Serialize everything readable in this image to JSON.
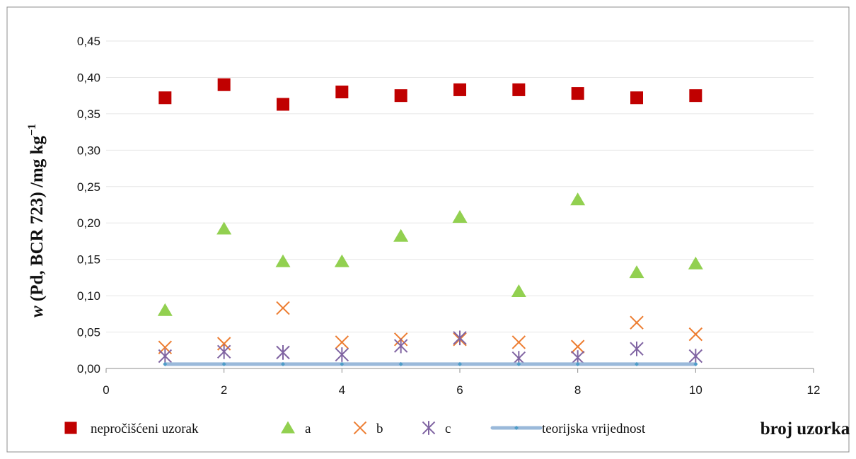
{
  "chart_data": {
    "type": "scatter",
    "title": "",
    "xlabel": "broj uzorka",
    "ylabel_main": "w",
    "ylabel_rest": " (Pd, BCR 723) /mg kg",
    "ylabel_sup": "−1",
    "xlim": [
      0,
      12
    ],
    "ylim": [
      0,
      0.45
    ],
    "x_ticks": [
      0,
      2,
      4,
      6,
      8,
      10,
      12
    ],
    "x_tick_labels": [
      "0",
      "2",
      "4",
      "6",
      "8",
      "10",
      "12"
    ],
    "y_ticks": [
      0,
      0.05,
      0.1,
      0.15,
      0.2,
      0.25,
      0.3,
      0.35,
      0.4,
      0.45
    ],
    "y_tick_labels": [
      "0,00",
      "0,05",
      "0,10",
      "0,15",
      "0,20",
      "0,25",
      "0,30",
      "0,35",
      "0,40",
      "0,45"
    ],
    "grid": true,
    "legend_position": "bottom",
    "series": [
      {
        "name": "nepročišćeni uzorak",
        "marker": "square",
        "color": "#c00000",
        "x": [
          1,
          2,
          3,
          4,
          5,
          6,
          7,
          8,
          9,
          10
        ],
        "y": [
          0.372,
          0.39,
          0.363,
          0.38,
          0.375,
          0.383,
          0.383,
          0.378,
          0.372,
          0.375
        ]
      },
      {
        "name": "a",
        "marker": "triangle",
        "color": "#92d050",
        "x": [
          1,
          2,
          3,
          4,
          5,
          6,
          7,
          8,
          9,
          10
        ],
        "y": [
          0.08,
          0.192,
          0.147,
          0.147,
          0.182,
          0.208,
          0.106,
          0.232,
          0.132,
          0.144
        ]
      },
      {
        "name": "b",
        "marker": "x",
        "color": "#ed7d31",
        "x": [
          1,
          2,
          3,
          4,
          5,
          6,
          7,
          8,
          9,
          10
        ],
        "y": [
          0.029,
          0.034,
          0.083,
          0.036,
          0.04,
          0.04,
          0.036,
          0.03,
          0.063,
          0.047
        ]
      },
      {
        "name": "c",
        "marker": "asterisk",
        "color": "#8064a2",
        "x": [
          1,
          2,
          3,
          4,
          5,
          6,
          7,
          8,
          9,
          10
        ],
        "y": [
          0.017,
          0.023,
          0.022,
          0.019,
          0.031,
          0.042,
          0.014,
          0.015,
          0.027,
          0.017
        ]
      },
      {
        "name": "teorijska vrijednost",
        "marker": "line",
        "color": "#4f9dc8",
        "line_color": "#9ab9da",
        "x": [
          1,
          2,
          3,
          4,
          5,
          6,
          7,
          8,
          9,
          10
        ],
        "y": [
          0.006,
          0.006,
          0.006,
          0.006,
          0.006,
          0.006,
          0.006,
          0.006,
          0.006,
          0.006
        ]
      }
    ]
  }
}
